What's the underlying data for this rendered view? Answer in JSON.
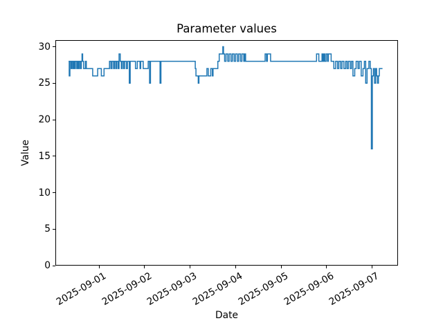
{
  "figure": {
    "background": "#ffffff",
    "spine_color": "#000000"
  },
  "chart_data": {
    "type": "line",
    "title": "Parameter values",
    "xlabel": "Date",
    "ylabel": "Value",
    "line_color": "#1f77b4",
    "line_width": 1.5,
    "step_mode": "post",
    "grid": false,
    "legend": "none",
    "y_ticks": [
      0,
      5,
      10,
      15,
      20,
      25,
      30
    ],
    "ylim": [
      0,
      30.9
    ],
    "x_tick_labels": [
      "2025-09-01",
      "2025-09-02",
      "2025-09-03",
      "2025-09-04",
      "2025-09-05",
      "2025-09-06",
      "2025-09-07"
    ],
    "x_tick_days": [
      0,
      1,
      2,
      3,
      4,
      5,
      6
    ],
    "xlim_days": [
      -0.96,
      6.57
    ],
    "x_unit": "days offset from 2025-09-01",
    "points": [
      [
        -0.67,
        28
      ],
      [
        -0.655,
        26
      ],
      [
        -0.64,
        28
      ],
      [
        -0.615,
        27
      ],
      [
        -0.6,
        28
      ],
      [
        -0.575,
        27
      ],
      [
        -0.555,
        28
      ],
      [
        -0.535,
        27
      ],
      [
        -0.52,
        28
      ],
      [
        -0.49,
        27
      ],
      [
        -0.475,
        28
      ],
      [
        -0.455,
        27
      ],
      [
        -0.435,
        28
      ],
      [
        -0.41,
        27
      ],
      [
        -0.39,
        28
      ],
      [
        -0.375,
        29
      ],
      [
        -0.36,
        28
      ],
      [
        -0.34,
        27
      ],
      [
        -0.3,
        28
      ],
      [
        -0.28,
        27
      ],
      [
        -0.14,
        26
      ],
      [
        -0.03,
        27
      ],
      [
        0.05,
        26
      ],
      [
        0.11,
        27
      ],
      [
        0.23,
        28
      ],
      [
        0.26,
        27
      ],
      [
        0.285,
        28
      ],
      [
        0.32,
        27
      ],
      [
        0.34,
        28
      ],
      [
        0.37,
        27
      ],
      [
        0.39,
        28
      ],
      [
        0.42,
        27
      ],
      [
        0.44,
        29
      ],
      [
        0.465,
        28
      ],
      [
        0.49,
        27
      ],
      [
        0.51,
        28
      ],
      [
        0.54,
        27
      ],
      [
        0.56,
        28
      ],
      [
        0.6,
        27
      ],
      [
        0.625,
        28
      ],
      [
        0.665,
        25
      ],
      [
        0.685,
        28
      ],
      [
        0.8,
        27
      ],
      [
        0.84,
        28
      ],
      [
        0.9,
        27
      ],
      [
        0.915,
        28
      ],
      [
        0.97,
        27
      ],
      [
        1.08,
        28
      ],
      [
        1.11,
        25
      ],
      [
        1.13,
        28
      ],
      [
        1.34,
        25
      ],
      [
        1.36,
        28
      ],
      [
        2.115,
        27
      ],
      [
        2.13,
        26
      ],
      [
        2.18,
        25
      ],
      [
        2.195,
        26
      ],
      [
        2.37,
        27
      ],
      [
        2.4,
        26
      ],
      [
        2.455,
        27
      ],
      [
        2.49,
        26
      ],
      [
        2.505,
        27
      ],
      [
        2.61,
        28
      ],
      [
        2.64,
        29
      ],
      [
        2.72,
        30
      ],
      [
        2.735,
        29
      ],
      [
        2.76,
        28
      ],
      [
        2.79,
        29
      ],
      [
        2.83,
        28
      ],
      [
        2.86,
        29
      ],
      [
        2.9,
        28
      ],
      [
        2.93,
        29
      ],
      [
        2.97,
        28
      ],
      [
        3.0,
        29
      ],
      [
        3.04,
        28
      ],
      [
        3.07,
        29
      ],
      [
        3.11,
        28
      ],
      [
        3.14,
        29
      ],
      [
        3.18,
        28
      ],
      [
        3.2,
        29
      ],
      [
        3.22,
        28
      ],
      [
        3.65,
        29
      ],
      [
        3.68,
        28
      ],
      [
        3.7,
        29
      ],
      [
        3.77,
        28
      ],
      [
        4.78,
        29
      ],
      [
        4.83,
        28
      ],
      [
        4.9,
        29
      ],
      [
        4.92,
        28
      ],
      [
        4.94,
        29
      ],
      [
        4.96,
        28
      ],
      [
        4.99,
        29
      ],
      [
        5.02,
        28
      ],
      [
        5.04,
        29
      ],
      [
        5.1,
        28
      ],
      [
        5.16,
        27
      ],
      [
        5.2,
        28
      ],
      [
        5.24,
        27
      ],
      [
        5.27,
        28
      ],
      [
        5.31,
        27
      ],
      [
        5.34,
        28
      ],
      [
        5.38,
        27
      ],
      [
        5.42,
        28
      ],
      [
        5.45,
        27
      ],
      [
        5.48,
        28
      ],
      [
        5.52,
        27
      ],
      [
        5.55,
        28
      ],
      [
        5.58,
        26
      ],
      [
        5.62,
        27
      ],
      [
        5.65,
        28
      ],
      [
        5.69,
        27
      ],
      [
        5.72,
        28
      ],
      [
        5.76,
        26
      ],
      [
        5.8,
        27
      ],
      [
        5.83,
        28
      ],
      [
        5.86,
        25
      ],
      [
        5.89,
        27
      ],
      [
        5.93,
        28
      ],
      [
        5.96,
        27
      ],
      [
        5.985,
        16
      ],
      [
        6.005,
        26
      ],
      [
        6.03,
        27
      ],
      [
        6.055,
        25
      ],
      [
        6.08,
        27
      ],
      [
        6.1,
        26
      ],
      [
        6.12,
        25
      ],
      [
        6.14,
        26
      ],
      [
        6.16,
        27
      ],
      [
        6.23,
        27
      ]
    ]
  }
}
